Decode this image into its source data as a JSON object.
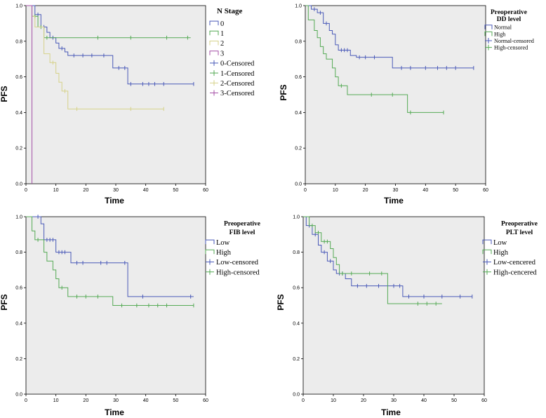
{
  "chart_data": [
    {
      "type": "line",
      "subtype": "kaplan-meier",
      "xlabel": "Time",
      "ylabel": "PFS",
      "xlim": [
        0,
        60
      ],
      "ylim": [
        0,
        1.0
      ],
      "xticks": [
        "0",
        "10",
        "20",
        "30",
        "40",
        "50",
        "60"
      ],
      "yticks": [
        "0.0",
        "0.2",
        "0.4",
        "0.6",
        "0.8",
        "1.0"
      ],
      "legend_title": "N Stage",
      "legend_position": "top-right",
      "legend_entries": [
        "0",
        "1",
        "2",
        "3",
        "0-Censored",
        "1-Censored",
        "2-Censored",
        "3-Censored"
      ],
      "series": [
        {
          "name": "0",
          "color": "#4a5ab8",
          "steps": [
            [
              0,
              1.0
            ],
            [
              3,
              0.95
            ],
            [
              5,
              0.88
            ],
            [
              7,
              0.85
            ],
            [
              8,
              0.82
            ],
            [
              10,
              0.79
            ],
            [
              11,
              0.76
            ],
            [
              13,
              0.74
            ],
            [
              14,
              0.72
            ],
            [
              29,
              0.65
            ],
            [
              34,
              0.56
            ],
            [
              56,
              0.56
            ]
          ],
          "censored": [
            [
              4,
              0.95
            ],
            [
              6,
              0.88
            ],
            [
              9,
              0.82
            ],
            [
              12,
              0.76
            ],
            [
              16,
              0.72
            ],
            [
              19,
              0.72
            ],
            [
              22,
              0.72
            ],
            [
              26,
              0.72
            ],
            [
              31,
              0.65
            ],
            [
              33,
              0.65
            ],
            [
              35,
              0.56
            ],
            [
              39,
              0.56
            ],
            [
              41,
              0.56
            ],
            [
              43,
              0.56
            ],
            [
              46,
              0.56
            ],
            [
              56,
              0.56
            ]
          ]
        },
        {
          "name": "1",
          "color": "#55aa55",
          "steps": [
            [
              0,
              1.0
            ],
            [
              2,
              0.94
            ],
            [
              4,
              0.88
            ],
            [
              6,
              0.82
            ],
            [
              55,
              0.82
            ]
          ],
          "censored": [
            [
              3,
              0.94
            ],
            [
              5,
              0.88
            ],
            [
              7,
              0.82
            ],
            [
              24,
              0.82
            ],
            [
              35,
              0.82
            ],
            [
              47,
              0.82
            ],
            [
              54,
              0.82
            ]
          ]
        },
        {
          "name": "2",
          "color": "#d6d28a",
          "steps": [
            [
              0,
              1.0
            ],
            [
              2,
              0.94
            ],
            [
              3,
              0.88
            ],
            [
              6,
              0.73
            ],
            [
              8,
              0.68
            ],
            [
              10,
              0.62
            ],
            [
              11,
              0.57
            ],
            [
              12,
              0.52
            ],
            [
              14,
              0.42
            ],
            [
              46,
              0.42
            ]
          ],
          "censored": [
            [
              9,
              0.68
            ],
            [
              13,
              0.52
            ],
            [
              17,
              0.42
            ],
            [
              35,
              0.42
            ],
            [
              46,
              0.42
            ]
          ]
        },
        {
          "name": "3",
          "color": "#a44fa6",
          "steps": [
            [
              0,
              1.0
            ],
            [
              2,
              1.0
            ],
            [
              2,
              0.0
            ]
          ],
          "censored": []
        }
      ]
    },
    {
      "type": "line",
      "subtype": "kaplan-meier",
      "xlabel": "Time",
      "ylabel": "PFS",
      "xlim": [
        0,
        60
      ],
      "ylim": [
        0,
        1.0
      ],
      "xticks": [
        "0",
        "10",
        "20",
        "30",
        "40",
        "50",
        "60"
      ],
      "yticks": [
        "0.0",
        "0.2",
        "0.4",
        "0.6",
        "0.8",
        "1.0"
      ],
      "legend_title_lines": [
        "Preoperative",
        "DD level"
      ],
      "legend_position": "top-right",
      "legend_entries": [
        "Normal",
        "High",
        "Normal-censored",
        "High-censored"
      ],
      "series": [
        {
          "name": "Normal",
          "color": "#4a5ab8",
          "steps": [
            [
              0,
              1.0
            ],
            [
              2,
              0.98
            ],
            [
              4,
              0.96
            ],
            [
              6,
              0.9
            ],
            [
              8,
              0.86
            ],
            [
              9,
              0.84
            ],
            [
              10,
              0.78
            ],
            [
              11,
              0.75
            ],
            [
              15,
              0.72
            ],
            [
              17,
              0.71
            ],
            [
              29,
              0.65
            ],
            [
              56,
              0.65
            ]
          ],
          "censored": [
            [
              3,
              0.98
            ],
            [
              5,
              0.96
            ],
            [
              7,
              0.9
            ],
            [
              12,
              0.75
            ],
            [
              13,
              0.75
            ],
            [
              14,
              0.75
            ],
            [
              18,
              0.71
            ],
            [
              20,
              0.71
            ],
            [
              23,
              0.71
            ],
            [
              32,
              0.65
            ],
            [
              35,
              0.65
            ],
            [
              40,
              0.65
            ],
            [
              44,
              0.65
            ],
            [
              47,
              0.65
            ],
            [
              50,
              0.65
            ],
            [
              56,
              0.65
            ]
          ]
        },
        {
          "name": "High",
          "color": "#55aa55",
          "steps": [
            [
              0,
              1.0
            ],
            [
              1,
              0.92
            ],
            [
              3,
              0.86
            ],
            [
              4,
              0.82
            ],
            [
              5,
              0.77
            ],
            [
              6,
              0.73
            ],
            [
              7,
              0.7
            ],
            [
              9,
              0.65
            ],
            [
              10,
              0.6
            ],
            [
              11,
              0.55
            ],
            [
              14,
              0.5
            ],
            [
              34,
              0.4
            ],
            [
              46,
              0.4
            ]
          ],
          "censored": [
            [
              12,
              0.55
            ],
            [
              22,
              0.5
            ],
            [
              29,
              0.5
            ],
            [
              35,
              0.4
            ],
            [
              46,
              0.4
            ]
          ]
        }
      ]
    },
    {
      "type": "line",
      "subtype": "kaplan-meier",
      "xlabel": "Time",
      "ylabel": "PFS",
      "xlim": [
        0,
        60
      ],
      "ylim": [
        0,
        1.0
      ],
      "xticks": [
        "0",
        "10",
        "20",
        "30",
        "40",
        "50",
        "60"
      ],
      "yticks": [
        "0.0",
        "0.2",
        "0.4",
        "0.6",
        "0.8",
        "1.0"
      ],
      "legend_title_lines": [
        "Preoperative",
        "FIB level"
      ],
      "legend_position": "top-right",
      "legend_entries": [
        "Low",
        "High",
        "Low-censored",
        "High-censored"
      ],
      "series": [
        {
          "name": "Low",
          "color": "#4a5ab8",
          "steps": [
            [
              0,
              1.0
            ],
            [
              5,
              0.96
            ],
            [
              6,
              0.87
            ],
            [
              10,
              0.8
            ],
            [
              15,
              0.74
            ],
            [
              34,
              0.55
            ],
            [
              56,
              0.55
            ]
          ],
          "censored": [
            [
              4,
              1.0
            ],
            [
              7,
              0.87
            ],
            [
              8,
              0.87
            ],
            [
              9,
              0.87
            ],
            [
              11,
              0.8
            ],
            [
              12,
              0.8
            ],
            [
              13,
              0.8
            ],
            [
              17,
              0.74
            ],
            [
              19,
              0.74
            ],
            [
              25,
              0.74
            ],
            [
              27,
              0.74
            ],
            [
              33,
              0.74
            ],
            [
              39,
              0.55
            ],
            [
              55,
              0.55
            ]
          ]
        },
        {
          "name": "High",
          "color": "#55aa55",
          "steps": [
            [
              0,
              1.0
            ],
            [
              2,
              0.92
            ],
            [
              3,
              0.87
            ],
            [
              6,
              0.8
            ],
            [
              7,
              0.75
            ],
            [
              9,
              0.7
            ],
            [
              10,
              0.65
            ],
            [
              11,
              0.6
            ],
            [
              14,
              0.55
            ],
            [
              29,
              0.5
            ],
            [
              56,
              0.5
            ]
          ],
          "censored": [
            [
              4,
              0.87
            ],
            [
              12,
              0.6
            ],
            [
              17,
              0.55
            ],
            [
              20,
              0.55
            ],
            [
              24,
              0.55
            ],
            [
              32,
              0.5
            ],
            [
              37,
              0.5
            ],
            [
              41,
              0.5
            ],
            [
              44,
              0.5
            ],
            [
              47,
              0.5
            ],
            [
              56,
              0.5
            ]
          ]
        }
      ]
    },
    {
      "type": "line",
      "subtype": "kaplan-meier",
      "xlabel": "Time",
      "ylabel": "PFS",
      "xlim": [
        0,
        60
      ],
      "ylim": [
        0,
        1.0
      ],
      "xticks": [
        "0",
        "10",
        "20",
        "30",
        "40",
        "50",
        "60"
      ],
      "yticks": [
        "0.0",
        "0.2",
        "0.4",
        "0.6",
        "0.8",
        "1.0"
      ],
      "legend_title_lines": [
        "Preoperative",
        "PLT level"
      ],
      "legend_position": "top-right",
      "legend_entries": [
        "Low",
        "High",
        "Low-cencered",
        "High-cencered"
      ],
      "series": [
        {
          "name": "Low",
          "color": "#4a5ab8",
          "steps": [
            [
              0,
              1.0
            ],
            [
              1,
              0.95
            ],
            [
              3,
              0.9
            ],
            [
              5,
              0.84
            ],
            [
              6,
              0.8
            ],
            [
              8,
              0.75
            ],
            [
              10,
              0.7
            ],
            [
              11,
              0.68
            ],
            [
              14,
              0.65
            ],
            [
              16,
              0.61
            ],
            [
              33,
              0.55
            ],
            [
              56,
              0.55
            ]
          ],
          "censored": [
            [
              2,
              0.95
            ],
            [
              4,
              0.9
            ],
            [
              7,
              0.8
            ],
            [
              9,
              0.75
            ],
            [
              12,
              0.68
            ],
            [
              13,
              0.68
            ],
            [
              18,
              0.61
            ],
            [
              21,
              0.61
            ],
            [
              25,
              0.61
            ],
            [
              30,
              0.61
            ],
            [
              32,
              0.61
            ],
            [
              35,
              0.55
            ],
            [
              40,
              0.55
            ],
            [
              46,
              0.55
            ],
            [
              52,
              0.55
            ],
            [
              56,
              0.55
            ]
          ]
        },
        {
          "name": "High",
          "color": "#55aa55",
          "steps": [
            [
              0,
              1.0
            ],
            [
              2,
              0.95
            ],
            [
              4,
              0.91
            ],
            [
              6,
              0.86
            ],
            [
              9,
              0.82
            ],
            [
              10,
              0.77
            ],
            [
              11,
              0.73
            ],
            [
              12,
              0.68
            ],
            [
              28,
              0.51
            ],
            [
              46,
              0.51
            ]
          ],
          "censored": [
            [
              3,
              0.95
            ],
            [
              5,
              0.91
            ],
            [
              7,
              0.86
            ],
            [
              8,
              0.86
            ],
            [
              13,
              0.68
            ],
            [
              16,
              0.68
            ],
            [
              22,
              0.68
            ],
            [
              26,
              0.68
            ],
            [
              38,
              0.51
            ],
            [
              41,
              0.51
            ],
            [
              44,
              0.51
            ]
          ]
        }
      ]
    }
  ]
}
